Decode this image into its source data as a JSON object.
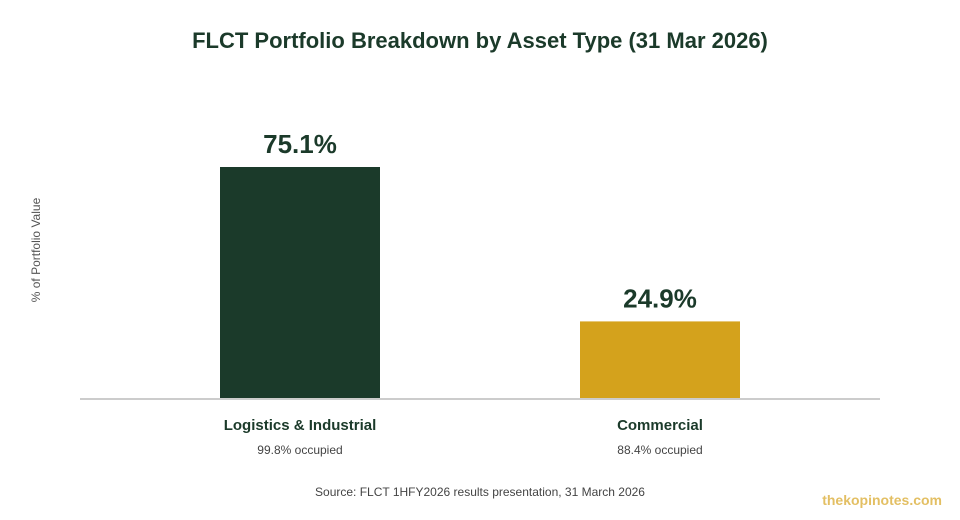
{
  "chart_data": {
    "type": "bar",
    "title": "FLCT Portfolio Breakdown by Asset Type (31 Mar 2026)",
    "ylabel": "% of Portfolio Value",
    "categories": [
      "Logistics & Industrial",
      "Commercial"
    ],
    "subtitles": [
      "99.8% occupied",
      "88.4% occupied"
    ],
    "values": [
      75.1,
      24.9
    ],
    "value_labels": [
      "75.1%",
      "24.9%"
    ],
    "colors": [
      "#1b3a2a",
      "#d4a21c"
    ],
    "ylim": [
      0,
      75.1
    ],
    "grid": false
  },
  "source": "Source: FLCT 1HFY2026 results presentation, 31 March 2026",
  "watermark": "thekopinotes.com"
}
